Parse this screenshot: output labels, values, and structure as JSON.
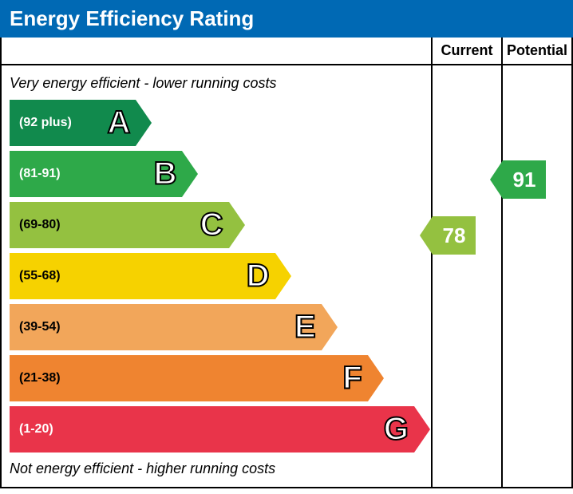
{
  "title": "Energy Efficiency Rating",
  "title_bg": "#0069b4",
  "header": {
    "current": "Current",
    "potential": "Potential"
  },
  "notes": {
    "top": "Very energy efficient - lower running costs",
    "bottom": "Not energy efficient - higher running costs"
  },
  "layout": {
    "band_height": 58,
    "band_gap": 6,
    "main_col_width": 536,
    "side_col_width": 88,
    "note_height": 30
  },
  "bands": [
    {
      "letter": "A",
      "range": "(92 plus)",
      "color": "#118a4d",
      "text_color": "#ffffff",
      "width_pct": 30
    },
    {
      "letter": "B",
      "range": "(81-91)",
      "color": "#2ea949",
      "text_color": "#ffffff",
      "width_pct": 41
    },
    {
      "letter": "C",
      "range": "(69-80)",
      "color": "#94c140",
      "text_color": "#000000",
      "width_pct": 52
    },
    {
      "letter": "D",
      "range": "(55-68)",
      "color": "#f6d200",
      "text_color": "#000000",
      "width_pct": 63
    },
    {
      "letter": "E",
      "range": "(39-54)",
      "color": "#f2a65a",
      "text_color": "#000000",
      "width_pct": 74
    },
    {
      "letter": "F",
      "range": "(21-38)",
      "color": "#ef8430",
      "text_color": "#000000",
      "width_pct": 85
    },
    {
      "letter": "G",
      "range": "(1-20)",
      "color": "#e9344a",
      "text_color": "#ffffff",
      "width_pct": 96
    }
  ],
  "current": {
    "value": "78",
    "band_letter": "C",
    "color": "#94c140"
  },
  "potential": {
    "value": "91",
    "band_letter": "B",
    "color": "#2ea949"
  }
}
